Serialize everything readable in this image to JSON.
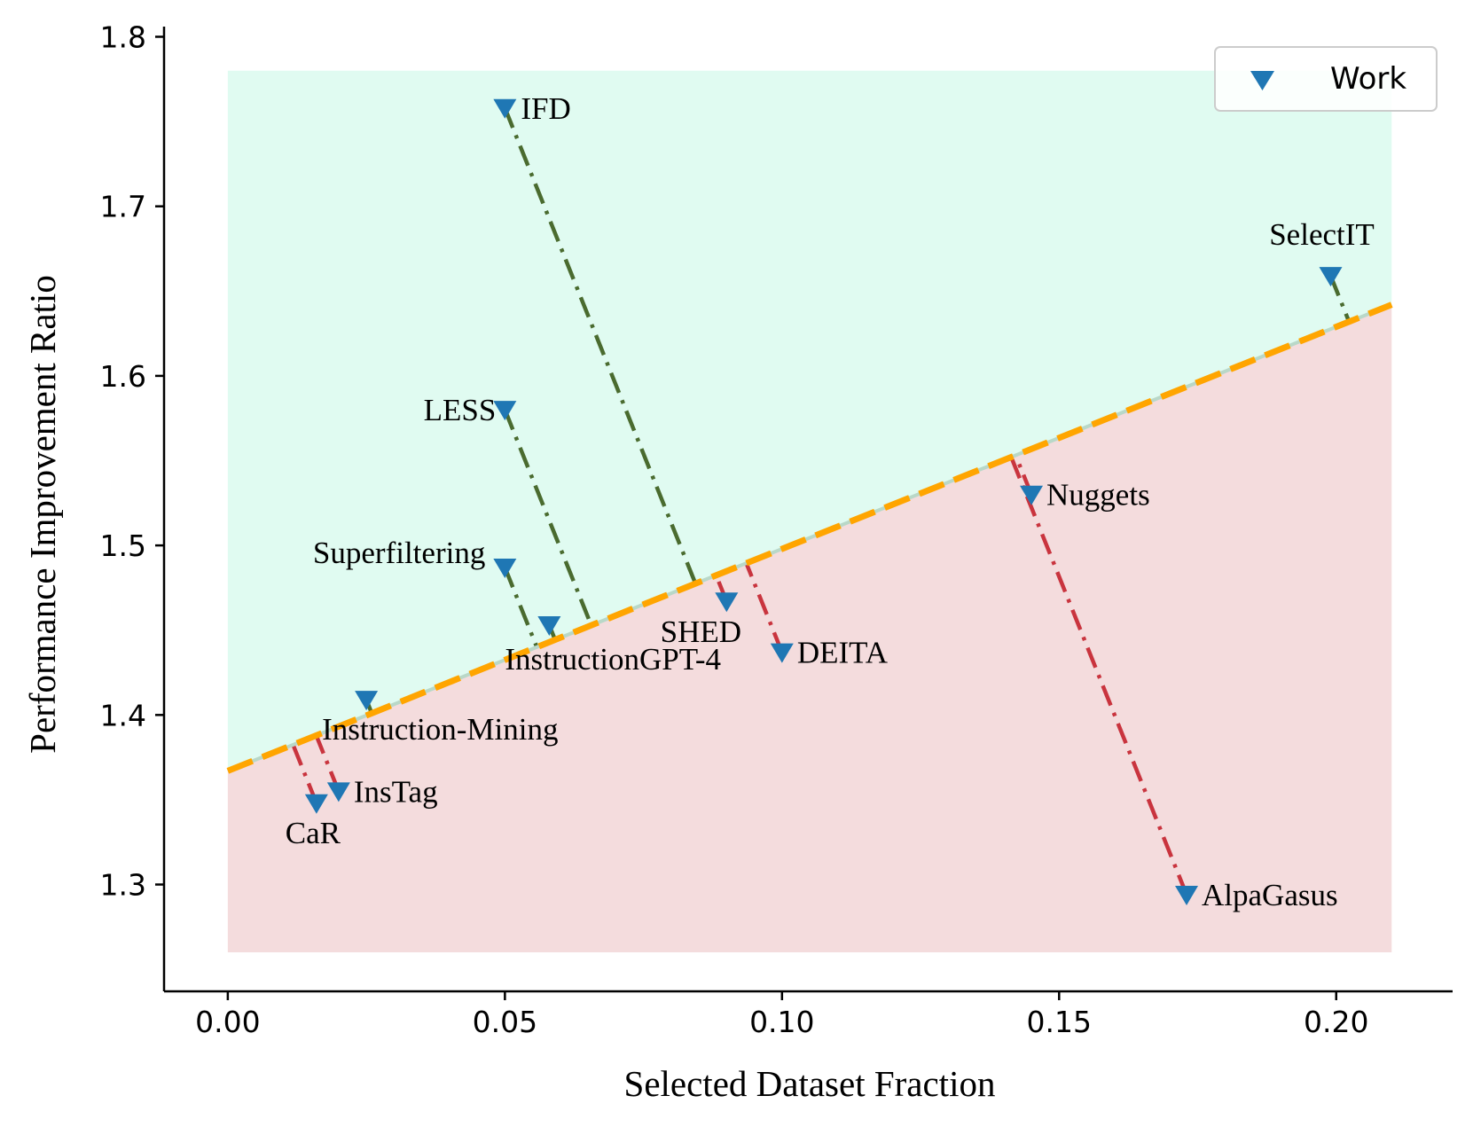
{
  "chart_data": {
    "type": "scatter",
    "title": "",
    "xlabel": "Selected Dataset Fraction",
    "ylabel": "Performance Improvement Ratio",
    "xlim": [
      -0.0115,
      0.221
    ],
    "ylim": [
      1.237,
      1.806
    ],
    "x_ticks": [
      {
        "value": 0.0,
        "label": "0.00"
      },
      {
        "value": 0.05,
        "label": "0.05"
      },
      {
        "value": 0.1,
        "label": "0.10"
      },
      {
        "value": 0.15,
        "label": "0.15"
      },
      {
        "value": 0.2,
        "label": "0.20"
      }
    ],
    "y_ticks": [
      {
        "value": 1.3,
        "label": "1.3"
      },
      {
        "value": 1.4,
        "label": "1.4"
      },
      {
        "value": 1.5,
        "label": "1.5"
      },
      {
        "value": 1.6,
        "label": "1.6"
      },
      {
        "value": 1.7,
        "label": "1.7"
      },
      {
        "value": 1.8,
        "label": "1.8"
      }
    ],
    "legend": {
      "entries": [
        "Work"
      ],
      "location": "upper right"
    },
    "colors": {
      "marker": "#1f77b4",
      "trend": "#ffa500",
      "above_region": "#e0fbf1",
      "below_region": "#f4dcdd",
      "above_connector": "#4a6b2f",
      "below_connector": "#c9343e"
    },
    "regions": {
      "x_range": [
        0.0,
        0.21
      ],
      "y_top": 1.78,
      "y_bottom": 1.26
    },
    "trend_line": {
      "x": [
        0.0,
        0.21
      ],
      "y": [
        1.367,
        1.642
      ]
    },
    "series": [
      {
        "name": "Work",
        "points": [
          {
            "label": "IFD",
            "x": 0.05,
            "y": 1.758
          },
          {
            "label": "LESS",
            "x": 0.05,
            "y": 1.58
          },
          {
            "label": "Superfiltering",
            "x": 0.05,
            "y": 1.487
          },
          {
            "label": "InstructionGPT-4",
            "x": 0.058,
            "y": 1.453
          },
          {
            "label": "Instruction-Mining",
            "x": 0.025,
            "y": 1.409
          },
          {
            "label": "InsTag",
            "x": 0.02,
            "y": 1.355
          },
          {
            "label": "CaR",
            "x": 0.016,
            "y": 1.348
          },
          {
            "label": "SHED",
            "x": 0.09,
            "y": 1.467
          },
          {
            "label": "DEITA",
            "x": 0.1,
            "y": 1.437
          },
          {
            "label": "Nuggets",
            "x": 0.145,
            "y": 1.53
          },
          {
            "label": "AlpaGasus",
            "x": 0.173,
            "y": 1.294
          },
          {
            "label": "SelectIT",
            "x": 0.199,
            "y": 1.659
          }
        ]
      }
    ]
  }
}
